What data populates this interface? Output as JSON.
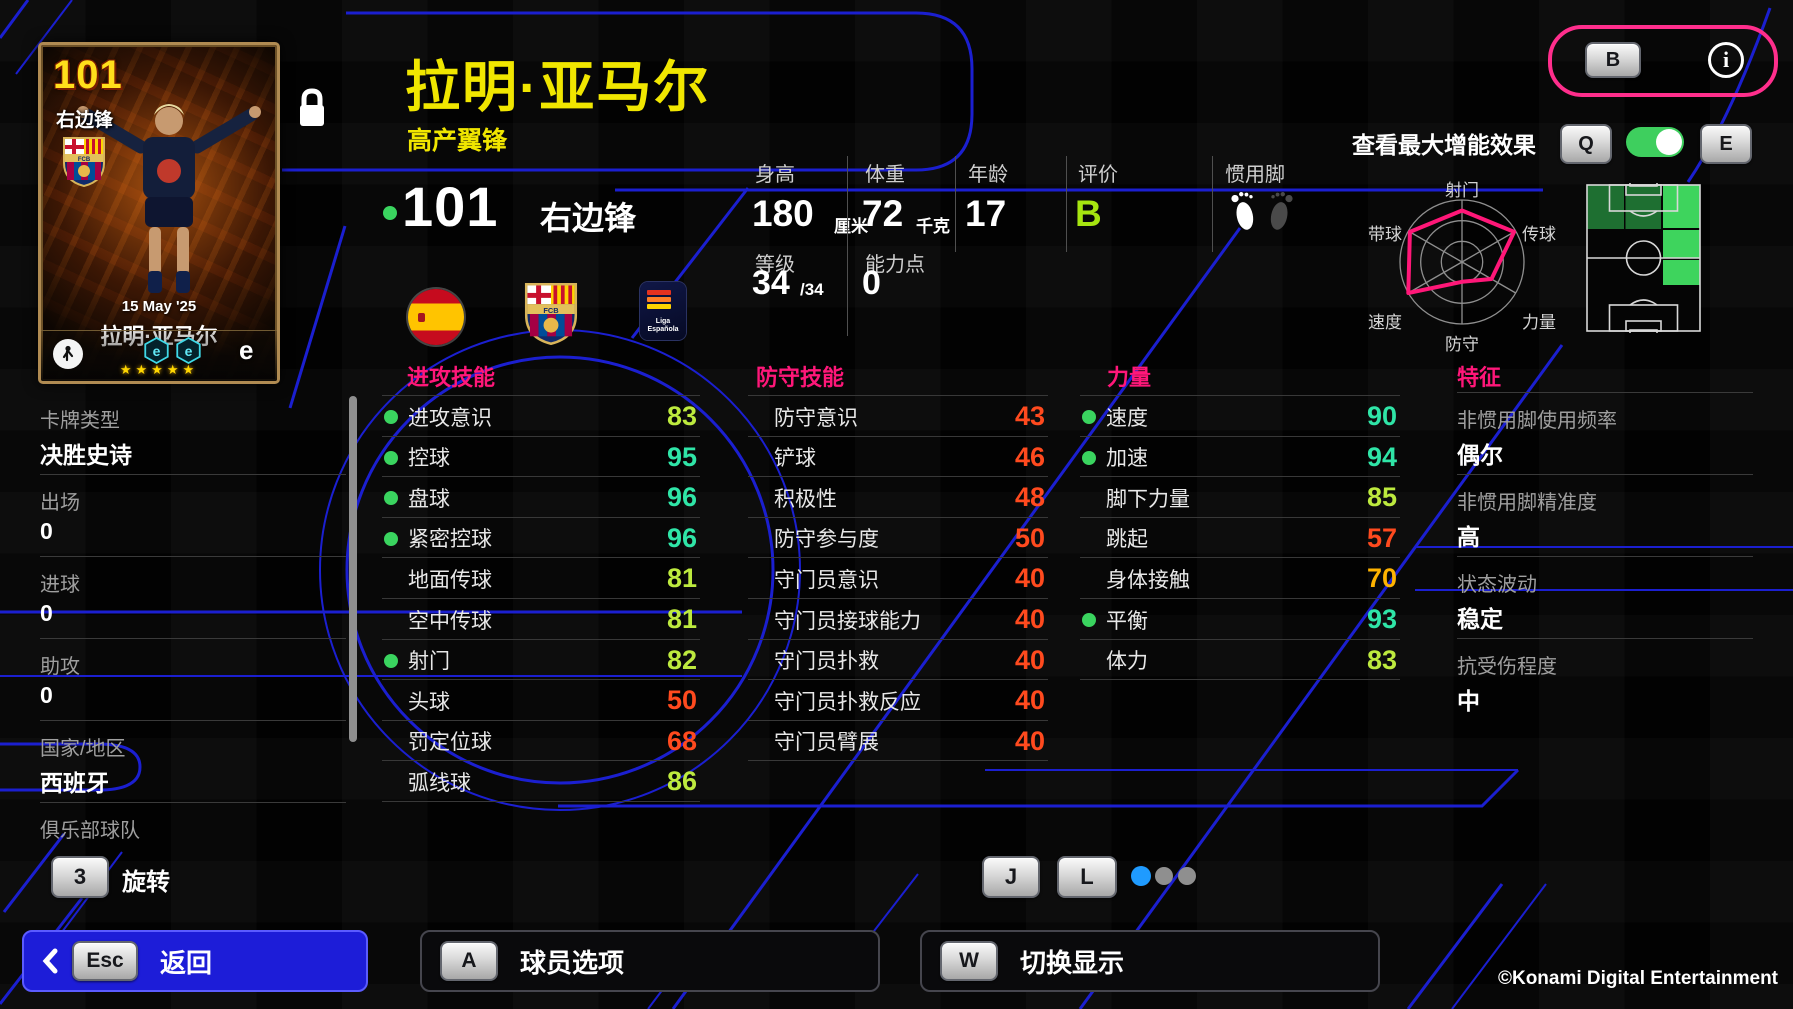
{
  "header": {
    "player_name": "拉明·亚马尔",
    "play_style": "高产翼锋",
    "rating": "101",
    "position": "右边锋",
    "info_key": "B",
    "boost_toggle_label": "查看最大增能效果",
    "boost_key_left": "Q",
    "boost_key_right": "E"
  },
  "card": {
    "rating": "101",
    "position": "右边锋",
    "date": "15 May '25",
    "name": "拉明·亚马尔",
    "stars": "★★★★★",
    "crest_text": "FCB",
    "booster_icon": "e",
    "efootball_logo": "e"
  },
  "badges": {
    "fcb_text": "FCB",
    "laliga_text_1": "Liga",
    "laliga_text_2": "Española"
  },
  "profile": {
    "height": {
      "label": "身高",
      "value": "180",
      "unit": "厘米"
    },
    "weight": {
      "label": "体重",
      "value": "72",
      "unit": "千克"
    },
    "age": {
      "label": "年龄",
      "value": "17"
    },
    "grade": {
      "label": "评价",
      "value": "B"
    },
    "foot": {
      "label": "惯用脚"
    },
    "level": {
      "label": "等级",
      "value": "34",
      "max": "/34"
    },
    "ability_points": {
      "label": "能力点",
      "value": "0"
    }
  },
  "radar": {
    "labels": [
      "射门",
      "传球",
      "力量",
      "防守",
      "速度",
      "带球"
    ],
    "values": [
      0.83,
      0.97,
      0.55,
      0.32,
      1.0,
      0.97
    ]
  },
  "sidebar": {
    "items": [
      {
        "label": "卡牌类型",
        "value": "决胜史诗"
      },
      {
        "label": "出场",
        "value": "0"
      },
      {
        "label": "进球",
        "value": "0"
      },
      {
        "label": "助攻",
        "value": "0"
      },
      {
        "label": "国家/地区",
        "value": "西班牙"
      },
      {
        "label": "俱乐部球队",
        "value": ""
      }
    ],
    "rotate": {
      "key": "3",
      "label": "旋转"
    }
  },
  "stats": {
    "attack": {
      "title": "进攻技能",
      "rows": [
        {
          "label": "进攻意识",
          "value": "83",
          "tone": "lime",
          "dot": true
        },
        {
          "label": "控球",
          "value": "95",
          "tone": "teal",
          "dot": true
        },
        {
          "label": "盘球",
          "value": "96",
          "tone": "teal",
          "dot": true
        },
        {
          "label": "紧密控球",
          "value": "96",
          "tone": "teal",
          "dot": true
        },
        {
          "label": "地面传球",
          "value": "81",
          "tone": "lime",
          "dot": false
        },
        {
          "label": "空中传球",
          "value": "81",
          "tone": "lime",
          "dot": false
        },
        {
          "label": "射门",
          "value": "82",
          "tone": "lime",
          "dot": true
        },
        {
          "label": "头球",
          "value": "50",
          "tone": "red",
          "dot": false
        },
        {
          "label": "罚定位球",
          "value": "68",
          "tone": "red",
          "dot": false
        },
        {
          "label": "弧线球",
          "value": "86",
          "tone": "lime",
          "dot": false
        }
      ]
    },
    "defense": {
      "title": "防守技能",
      "rows": [
        {
          "label": "防守意识",
          "value": "43",
          "tone": "red",
          "dot": false
        },
        {
          "label": "铲球",
          "value": "46",
          "tone": "red",
          "dot": false
        },
        {
          "label": "积极性",
          "value": "48",
          "tone": "red",
          "dot": false
        },
        {
          "label": "防守参与度",
          "value": "50",
          "tone": "red",
          "dot": false
        },
        {
          "label": "守门员意识",
          "value": "40",
          "tone": "red",
          "dot": false
        },
        {
          "label": "守门员接球能力",
          "value": "40",
          "tone": "red",
          "dot": false
        },
        {
          "label": "守门员扑救",
          "value": "40",
          "tone": "red",
          "dot": false
        },
        {
          "label": "守门员扑救反应",
          "value": "40",
          "tone": "red",
          "dot": false
        },
        {
          "label": "守门员臂展",
          "value": "40",
          "tone": "red",
          "dot": false
        }
      ]
    },
    "strength": {
      "title": "力量",
      "rows": [
        {
          "label": "速度",
          "value": "90",
          "tone": "teal",
          "dot": true
        },
        {
          "label": "加速",
          "value": "94",
          "tone": "teal",
          "dot": true
        },
        {
          "label": "脚下力量",
          "value": "85",
          "tone": "lime",
          "dot": false
        },
        {
          "label": "跳起",
          "value": "57",
          "tone": "red",
          "dot": false
        },
        {
          "label": "身体接触",
          "value": "70",
          "tone": "amber",
          "dot": false
        },
        {
          "label": "平衡",
          "value": "93",
          "tone": "teal",
          "dot": true
        },
        {
          "label": "体力",
          "value": "83",
          "tone": "lime",
          "dot": false
        }
      ]
    },
    "traits": {
      "title": "特征",
      "rows": [
        {
          "label": "非惯用脚使用频率",
          "value": "偶尔"
        },
        {
          "label": "非惯用脚精准度",
          "value": "高"
        },
        {
          "label": "状态波动",
          "value": "稳定"
        },
        {
          "label": "抗受伤程度",
          "value": "中"
        }
      ]
    }
  },
  "pager": {
    "keys": [
      "J",
      "L"
    ],
    "dot_count": 3,
    "active_dot": 0
  },
  "footer": {
    "back": {
      "key": "Esc",
      "label": "返回"
    },
    "player_options": {
      "key": "A",
      "label": "球员选项"
    },
    "toggle_display": {
      "key": "W",
      "label": "切换显示"
    },
    "copyright": "©Konami Digital Entertainment"
  },
  "colors": {
    "accent_yellow": "#f0e600",
    "header_pink": "#ff1779",
    "value_teal": "#2fe5a7",
    "value_lime": "#bdea3e",
    "value_amber": "#ffb300",
    "value_red": "#ff4a1e",
    "dot_green": "#3ad45f",
    "grade_green": "#a6e510",
    "line_blue": "#1b1fd0",
    "toggle_green": "#3ecf5e",
    "page_dot_blue": "#1f9bff",
    "pitch_bright": "#3ed45d",
    "pitch_dark": "#1e6f31",
    "back_button_blue": "#1d1dd8",
    "radar_pink": "#ff1778"
  }
}
